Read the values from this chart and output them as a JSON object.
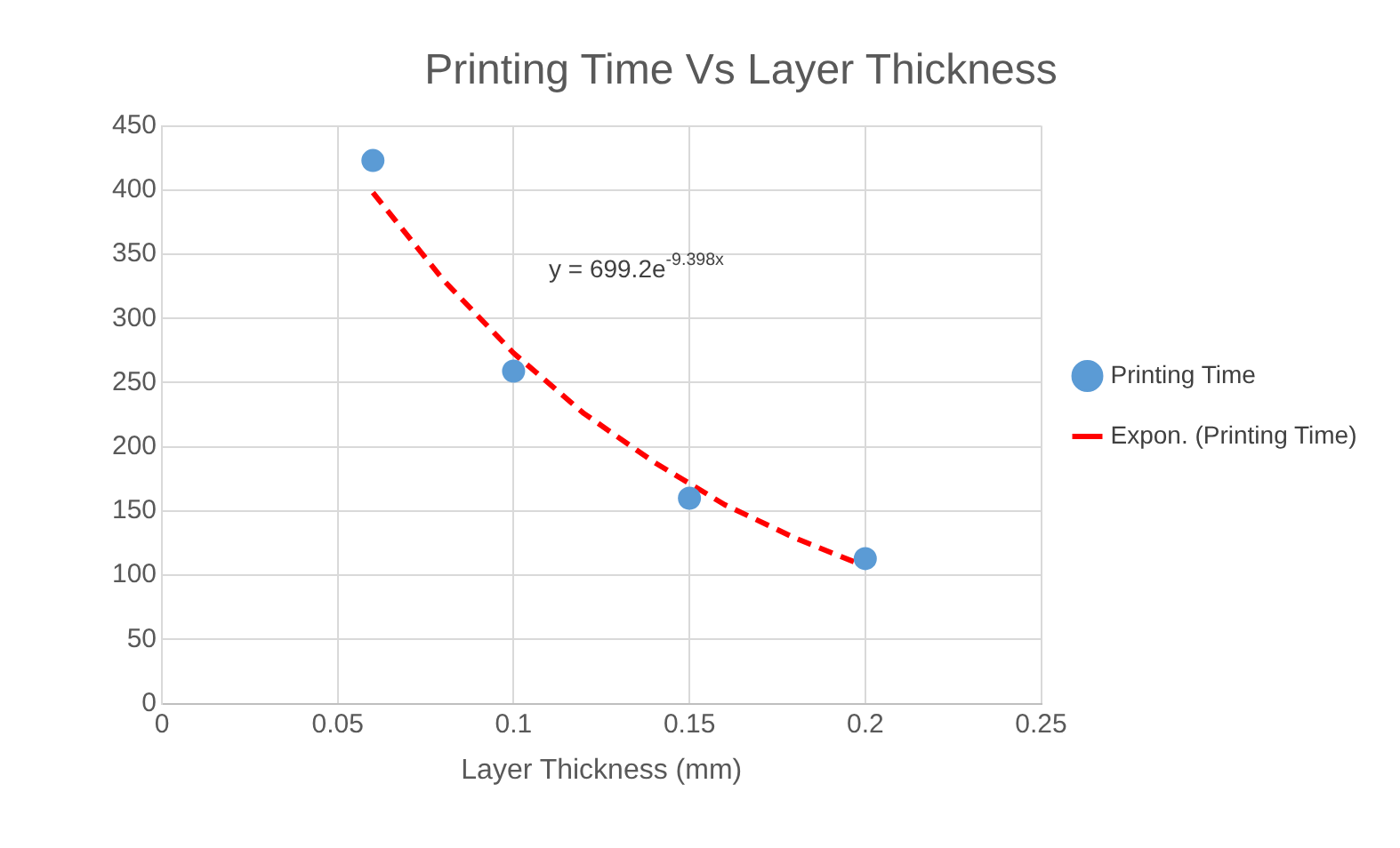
{
  "chart_data": {
    "type": "scatter",
    "title": "Printing Time Vs Layer Thickness",
    "xlabel": "Layer Thickness (mm)",
    "series": [
      {
        "name": "Printing Time",
        "color": "#5b9bd5",
        "marker": "circle",
        "x": [
          0.06,
          0.1,
          0.15,
          0.2
        ],
        "values": [
          423,
          259,
          160,
          113
        ]
      },
      {
        "name": "Expon. (Printing Time)",
        "type": "line",
        "color": "#ff0000",
        "marker": "none",
        "line_style": "dashed",
        "x": [
          0.06,
          0.08,
          0.1,
          0.12,
          0.14,
          0.16,
          0.18,
          0.2
        ],
        "values": [
          398,
          330,
          273,
          226,
          188,
          155,
          129,
          107
        ]
      }
    ],
    "annotations": [
      "y = 699.2e$^{-9.398x}$"
    ],
    "xlim": [
      0,
      0.25
    ],
    "xticks": [
      0,
      0.05,
      0.1,
      0.15,
      0.2,
      0.25
    ],
    "ylim": [
      0,
      450
    ],
    "yticks": [
      0,
      50,
      100,
      150,
      200,
      250,
      300,
      350,
      400,
      450
    ],
    "grid": true,
    "legend": "right"
  }
}
